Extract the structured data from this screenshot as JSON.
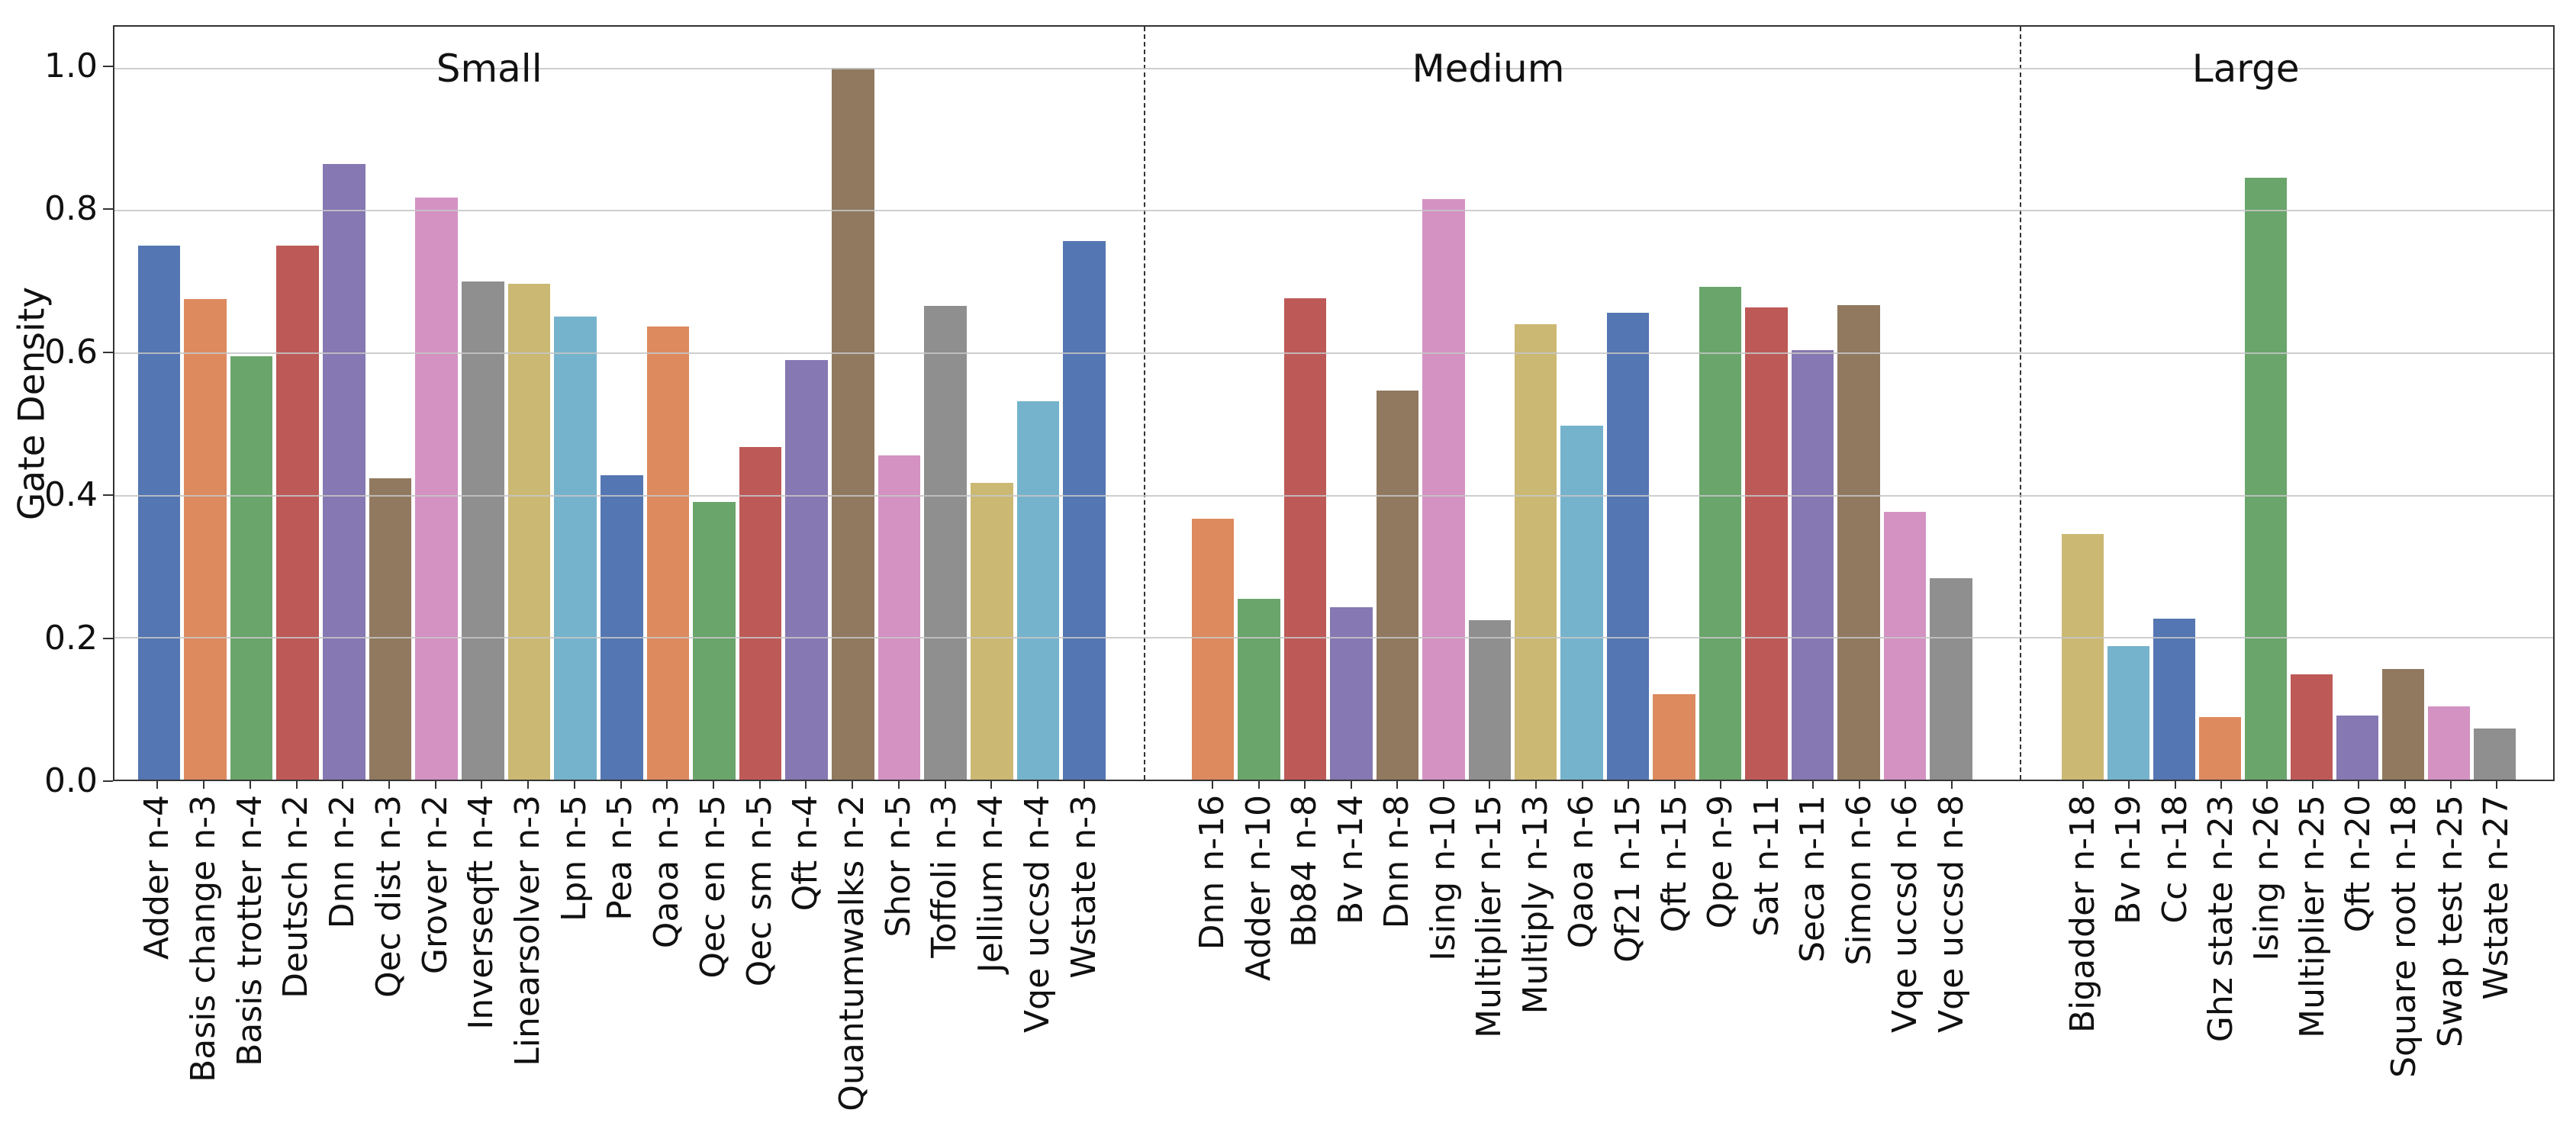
{
  "chart_data": {
    "type": "bar",
    "title": "",
    "ylabel": "Gate Density",
    "xlabel": "",
    "ylim": [
      0.0,
      1.06
    ],
    "grid": true,
    "legend": false,
    "ytick_values": [
      0.0,
      0.2,
      0.4,
      0.6,
      0.8,
      1.0
    ],
    "ytick_labels": [
      "0.0",
      "0.2",
      "0.4",
      "0.6",
      "0.8",
      "1.0"
    ],
    "palette": [
      "#5476b2",
      "#dd8a5f",
      "#6aa56b",
      "#bd5a57",
      "#8678b2",
      "#90795f",
      "#d492c3",
      "#8f8f8f",
      "#cbb873",
      "#75b3cc"
    ],
    "panels": [
      {
        "label": "Small",
        "bars": [
          {
            "name": "Adder n-4",
            "value": 0.75
          },
          {
            "name": "Basis change n-3",
            "value": 0.675
          },
          {
            "name": "Basis trotter n-4",
            "value": 0.595
          },
          {
            "name": "Deutsch n-2",
            "value": 0.75
          },
          {
            "name": "Dnn n-2",
            "value": 0.865
          },
          {
            "name": "Qec dist n-3",
            "value": 0.423
          },
          {
            "name": "Grover n-2",
            "value": 0.818
          },
          {
            "name": "Inverseqft n-4",
            "value": 0.7
          },
          {
            "name": "Linearsolver n-3",
            "value": 0.696
          },
          {
            "name": "Lpn n-5",
            "value": 0.65
          },
          {
            "name": "Pea n-5",
            "value": 0.428
          },
          {
            "name": "Qaoa n-3",
            "value": 0.637
          },
          {
            "name": "Qec en n-5",
            "value": 0.39
          },
          {
            "name": "Qec sm n-5",
            "value": 0.467
          },
          {
            "name": "Qft n-4",
            "value": 0.589
          },
          {
            "name": "Quantumwalks n-2",
            "value": 1.0
          },
          {
            "name": "Shor n-5",
            "value": 0.455
          },
          {
            "name": "Toffoli n-3",
            "value": 0.666
          },
          {
            "name": "Jellium n-4",
            "value": 0.417
          },
          {
            "name": "Vqe uccsd n-4",
            "value": 0.532
          },
          {
            "name": "Wstate n-3",
            "value": 0.757
          }
        ]
      },
      {
        "label": "Medium",
        "bars": [
          {
            "name": "Dnn n-16",
            "value": 0.367
          },
          {
            "name": "Adder n-10",
            "value": 0.254
          },
          {
            "name": "Bb84 n-8",
            "value": 0.676
          },
          {
            "name": "Bv n-14",
            "value": 0.242
          },
          {
            "name": "Dnn n-8",
            "value": 0.547
          },
          {
            "name": "Ising n-10",
            "value": 0.815
          },
          {
            "name": "Multiplier n-15",
            "value": 0.224
          },
          {
            "name": "Multiply n-13",
            "value": 0.64
          },
          {
            "name": "Qaoa n-6",
            "value": 0.497
          },
          {
            "name": "Qf21 n-15",
            "value": 0.656
          },
          {
            "name": "Qft n-15",
            "value": 0.12
          },
          {
            "name": "Qpe n-9",
            "value": 0.692
          },
          {
            "name": "Sat n-11",
            "value": 0.663
          },
          {
            "name": "Seca n-11",
            "value": 0.603
          },
          {
            "name": "Simon n-6",
            "value": 0.667
          },
          {
            "name": "Vqe uccsd n-6",
            "value": 0.376
          },
          {
            "name": "Vqe uccsd n-8",
            "value": 0.283
          }
        ]
      },
      {
        "label": "Large",
        "bars": [
          {
            "name": "Bigadder n-18",
            "value": 0.345
          },
          {
            "name": "Bv n-19",
            "value": 0.188
          },
          {
            "name": "Cc n-18",
            "value": 0.226
          },
          {
            "name": "Ghz state n-23",
            "value": 0.088
          },
          {
            "name": "Ising n-26",
            "value": 0.846
          },
          {
            "name": "Multiplier n-25",
            "value": 0.148
          },
          {
            "name": "Qft n-20",
            "value": 0.09
          },
          {
            "name": "Square root n-18",
            "value": 0.155
          },
          {
            "name": "Swap test n-25",
            "value": 0.103
          },
          {
            "name": "Wstate n-27",
            "value": 0.072
          }
        ]
      }
    ]
  }
}
